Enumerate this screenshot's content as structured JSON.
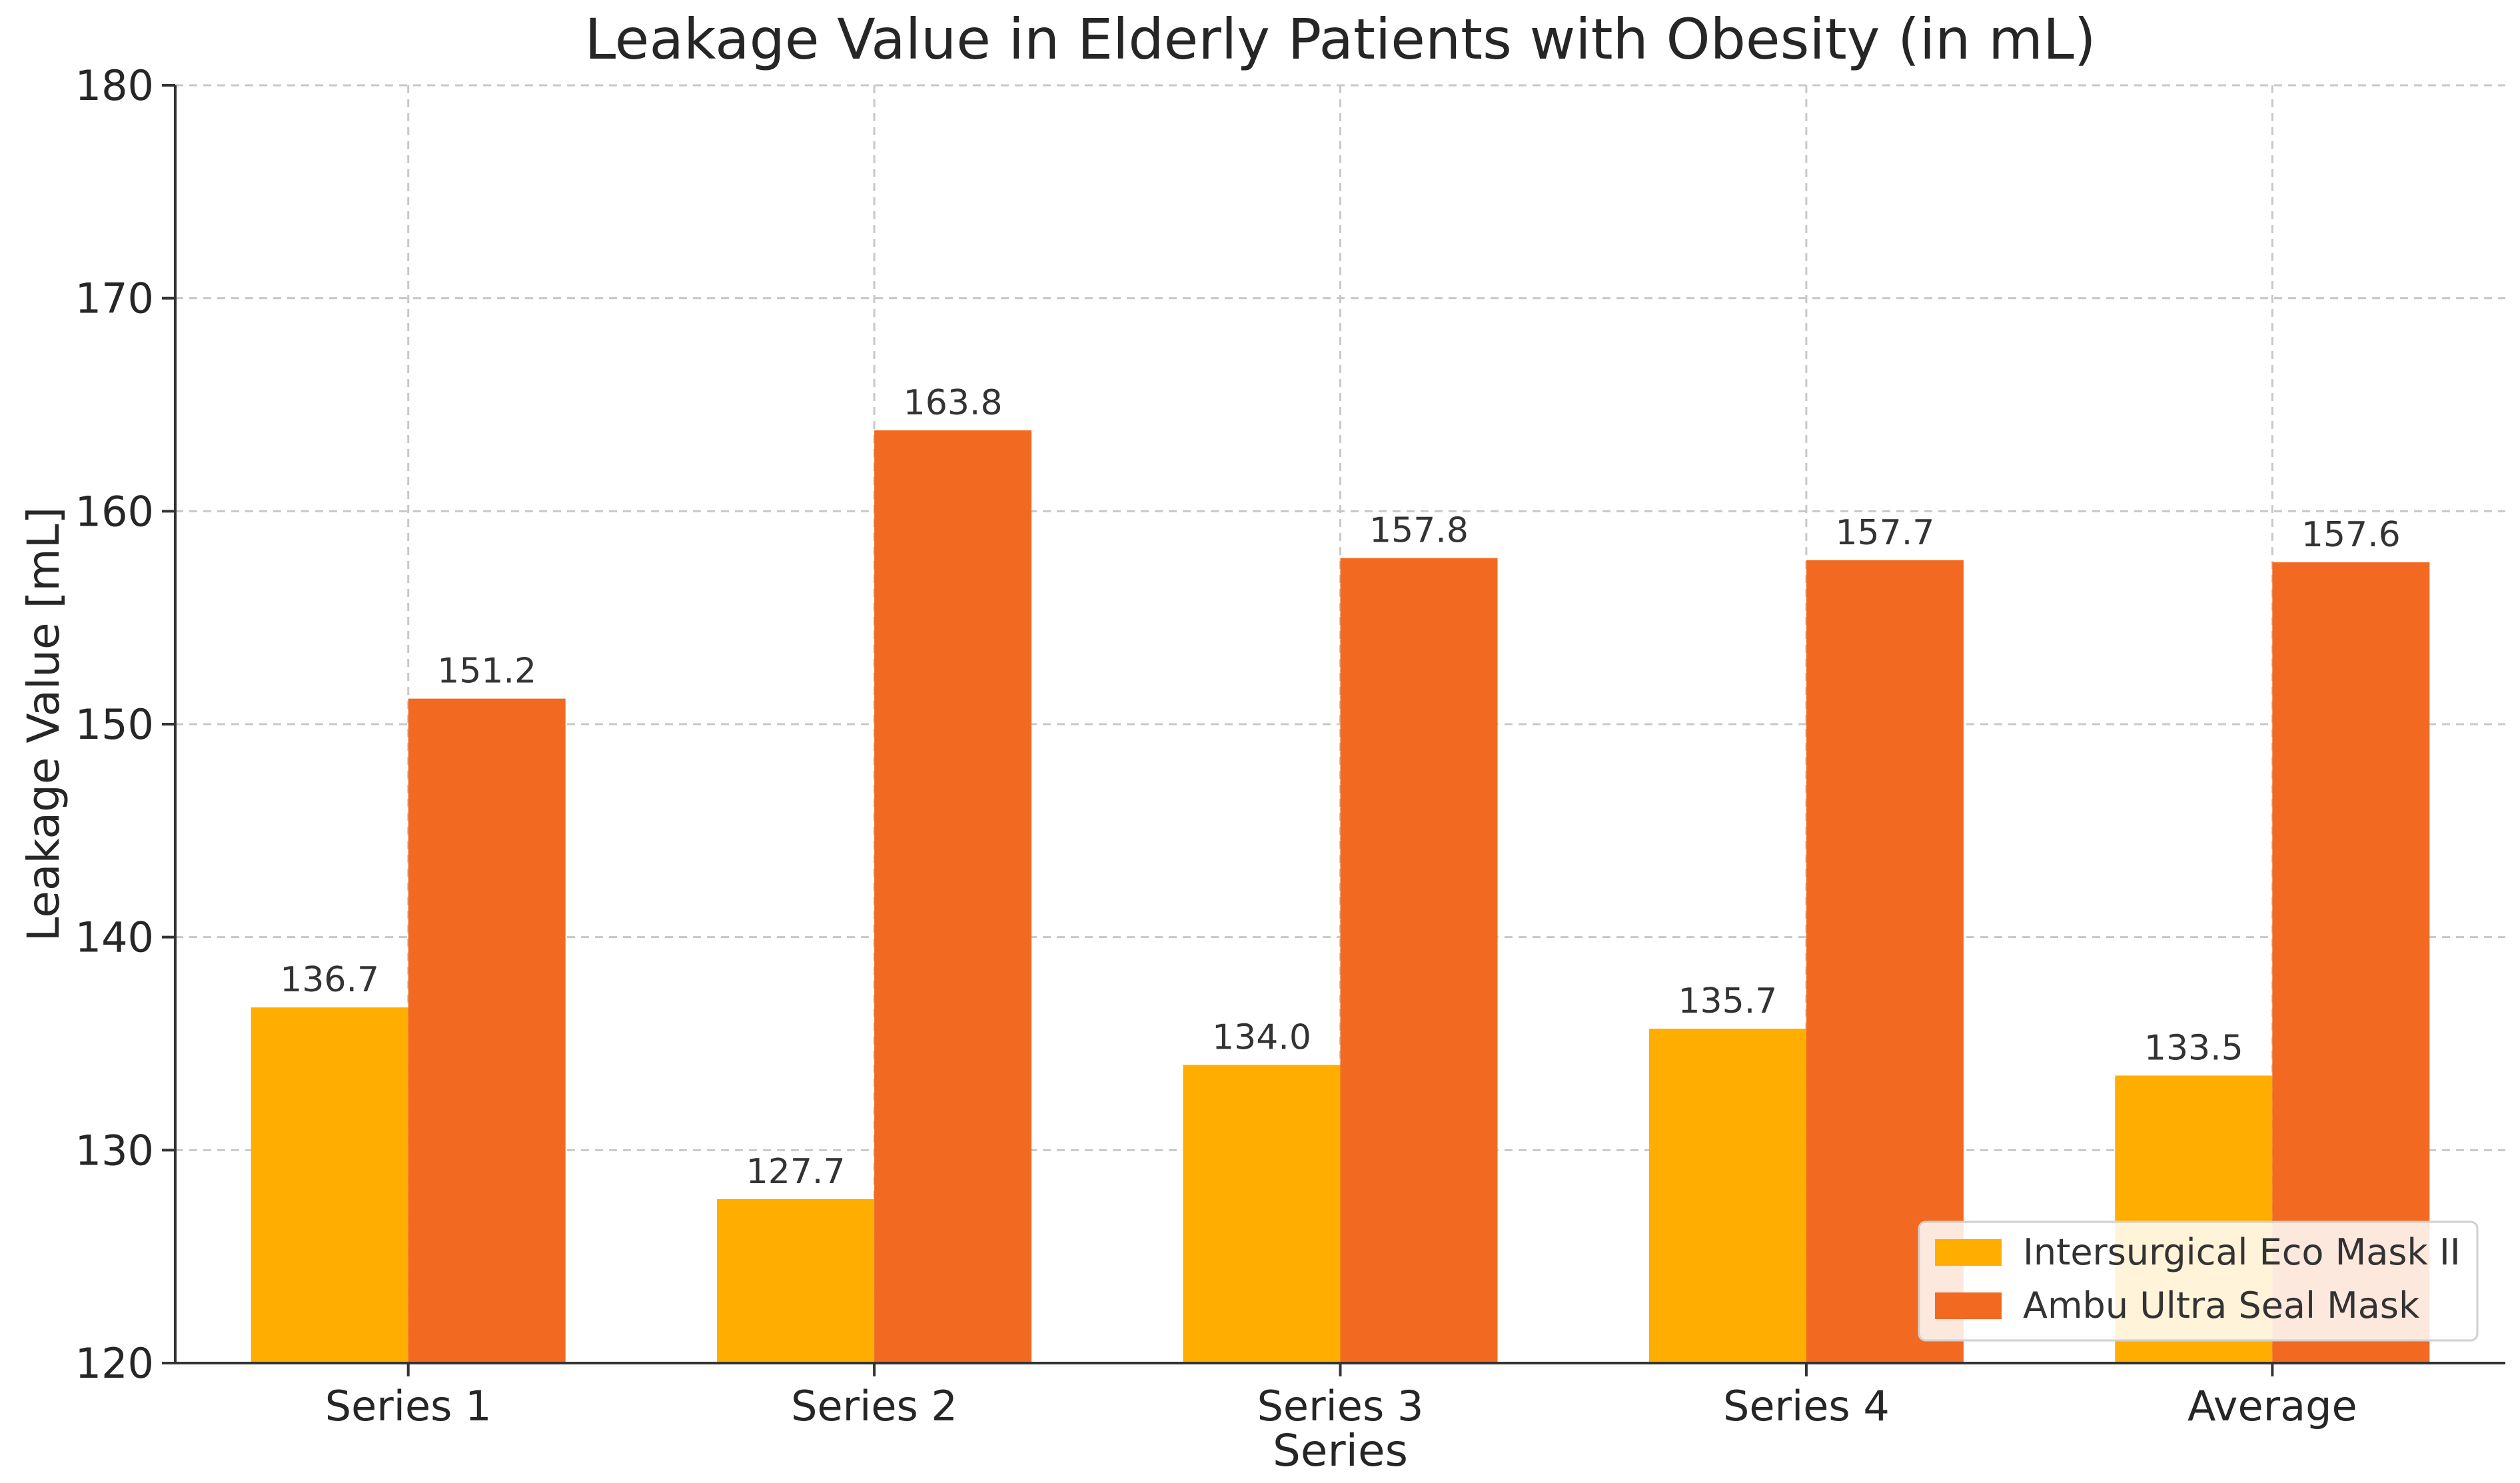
{
  "chart_data": {
    "type": "bar",
    "title": "Leakage Value in Elderly Patients with Obesity (in mL)",
    "xlabel": "Series",
    "ylabel": "Leakage Value [mL]",
    "categories": [
      "Series 1",
      "Series 2",
      "Series 3",
      "Series 4",
      "Average"
    ],
    "series": [
      {
        "name": "Intersurgical Eco Mask II",
        "color": "#FFAE00",
        "values": [
          136.7,
          127.7,
          134.0,
          135.7,
          133.5
        ]
      },
      {
        "name": "Ambu Ultra Seal Mask",
        "color": "#F26921",
        "values": [
          151.2,
          163.8,
          157.8,
          157.7,
          157.6
        ]
      }
    ],
    "ylim": [
      120,
      180
    ],
    "yticks": [
      120,
      130,
      140,
      150,
      160,
      170,
      180
    ],
    "grid": true,
    "legend_position": "lower-right",
    "data_labels": true
  }
}
